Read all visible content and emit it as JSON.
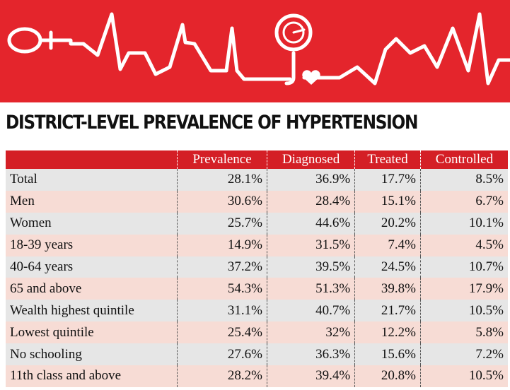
{
  "header": {
    "title": "DISTRICT-LEVEL PREVALENCE OF HYPERTENSION"
  },
  "table": {
    "columns": [
      "",
      "Prevalence",
      "Diagnosed",
      "Treated",
      "Controlled"
    ],
    "rows": [
      [
        "Total",
        "28.1%",
        "36.9%",
        "17.7%",
        "8.5%"
      ],
      [
        "Men",
        "30.6%",
        "28.4%",
        "15.1%",
        "6.7%"
      ],
      [
        "Women",
        "25.7%",
        "44.6%",
        "20.2%",
        "10.1%"
      ],
      [
        "18-39 years",
        "14.9%",
        "31.5%",
        "7.4%",
        "4.5%"
      ],
      [
        "40-64 years",
        "37.2%",
        "39.5%",
        "24.5%",
        "10.7%"
      ],
      [
        "65 and above",
        "54.3%",
        "51.3%",
        "39.8%",
        "17.9%"
      ],
      [
        "Wealth highest quintile",
        "31.1%",
        "40.7%",
        "21.7%",
        "10.5%"
      ],
      [
        "Lowest quintile",
        "25.4%",
        "32%",
        "12.2%",
        "5.8%"
      ],
      [
        "No schooling",
        "27.6%",
        "36.3%",
        "15.6%",
        "7.2%"
      ],
      [
        "11th class and above",
        "28.2%",
        "39.4%",
        "20.8%",
        "10.5%"
      ]
    ]
  }
}
